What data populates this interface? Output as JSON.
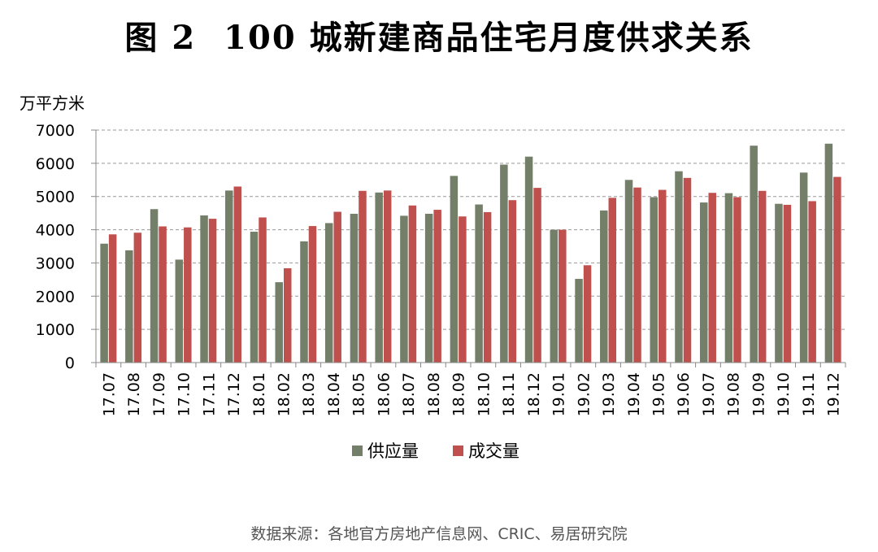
{
  "header": {
    "figure_number": "图 2",
    "title": "100 城新建商品住宅月度供求关系"
  },
  "source": "数据来源：各地官方房地产信息网、CRIC、易居研究院",
  "colors": {
    "supply": "#747f6a",
    "deal": "#c0504d",
    "grid": "#999999"
  },
  "chart_data": {
    "type": "bar",
    "title": "图 2　100 城新建商品住宅月度供求关系",
    "ylabel": "万平方米",
    "xlabel": "",
    "ylim": [
      0,
      7000
    ],
    "yticks": [
      0,
      1000,
      2000,
      3000,
      4000,
      5000,
      6000,
      7000
    ],
    "ytick_labels": [
      "0",
      "1000",
      "2000",
      "3000",
      "4000",
      "5000",
      "6000",
      "7000"
    ],
    "grid": "horizontal dashed",
    "legend": "bottom-center",
    "categories": [
      "17.07",
      "17.08",
      "17.09",
      "17.10",
      "17.11",
      "17.12",
      "18.01",
      "18.02",
      "18.03",
      "18.04",
      "18.05",
      "18.06",
      "18.07",
      "18.08",
      "18.09",
      "18.10",
      "18.11",
      "18.12",
      "19.01",
      "19.02",
      "19.03",
      "19.04",
      "19.05",
      "19.06",
      "19.07",
      "19.08",
      "19.09",
      "19.10",
      "19.11",
      "19.12"
    ],
    "series": [
      {
        "name": "供应量",
        "values": [
          3580,
          3380,
          4620,
          3100,
          4430,
          5180,
          3940,
          2420,
          3650,
          4200,
          4480,
          5120,
          4420,
          4480,
          5620,
          4760,
          5960,
          6200,
          4000,
          2520,
          4580,
          5500,
          4980,
          5760,
          4820,
          5100,
          6530,
          4780,
          5720,
          6590
        ]
      },
      {
        "name": "成交量",
        "values": [
          3860,
          3910,
          4100,
          4070,
          4330,
          5300,
          4370,
          2840,
          4110,
          4540,
          5170,
          5180,
          4730,
          4600,
          4400,
          4530,
          4890,
          5260,
          4000,
          2930,
          4960,
          5270,
          5200,
          5560,
          5110,
          4980,
          5170,
          4750,
          4860,
          5590
        ]
      }
    ]
  }
}
